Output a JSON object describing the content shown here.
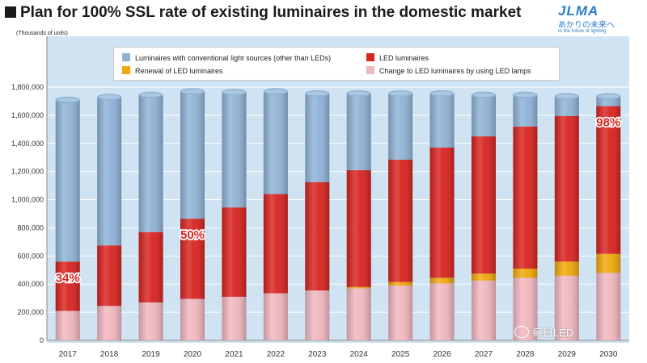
{
  "header": {
    "title": "Plan for 100% SSL rate of existing luminaires in the domestic market",
    "units": "(Thousands of units)"
  },
  "logo": {
    "mark": "JLMA",
    "japanese": "あかりの未来へ",
    "tagline": "to the future of lighting"
  },
  "watermark": {
    "text": "每日LED"
  },
  "colors": {
    "conventional": "#8fb3d6",
    "led": "#d8231f",
    "renewal": "#f0a80a",
    "lamps": "#f0b7bf",
    "plotBg": "#cfe3f2"
  },
  "chart_data": {
    "type": "bar",
    "stacked": true,
    "title": "Plan for 100% SSL rate of existing luminaires in the domestic market",
    "ylabel": "(Thousands of units)",
    "ylim": [
      0,
      1800000
    ],
    "yticks": [
      "0",
      "200,000",
      "400,000",
      "600,000",
      "800,000",
      "1,000,000",
      "1,200,000",
      "1,400,000",
      "1,600,000",
      "1,800,000"
    ],
    "categories": [
      "2017",
      "2018",
      "2019",
      "2020",
      "2021",
      "2022",
      "2023",
      "2024",
      "2025",
      "2026",
      "2027",
      "2028",
      "2029",
      "2030"
    ],
    "series": [
      {
        "name": "Change to LED luminaires by using LED lamps",
        "key": "lamps",
        "values": [
          210000,
          245000,
          270000,
          295000,
          310000,
          335000,
          355000,
          370000,
          390000,
          405000,
          425000,
          445000,
          460000,
          480000
        ]
      },
      {
        "name": "Renewal of LED luminaires",
        "key": "renewal",
        "values": [
          0,
          0,
          0,
          0,
          0,
          0,
          0,
          10000,
          25000,
          40000,
          50000,
          65000,
          100000,
          135000
        ]
      },
      {
        "name": "LED luminaires",
        "key": "led",
        "values": [
          350000,
          430000,
          500000,
          570000,
          635000,
          705000,
          770000,
          830000,
          870000,
          925000,
          975000,
          1010000,
          1035000,
          1050000
        ]
      },
      {
        "name": "Luminaires with conventional light sources (other than LEDs)",
        "key": "conventional",
        "values": [
          1150000,
          1055000,
          975000,
          905000,
          820000,
          730000,
          630000,
          545000,
          470000,
          385000,
          295000,
          225000,
          140000,
          70000
        ]
      }
    ],
    "legend": [
      {
        "label": "Luminaires with conventional light sources (other than LEDs)",
        "key": "conventional"
      },
      {
        "label": "LED luminaires",
        "key": "led"
      },
      {
        "label": "Renewal of LED luminaires",
        "key": "renewal"
      },
      {
        "label": "Change to LED luminaires by using LED lamps",
        "key": "lamps"
      }
    ],
    "legend_position": "top",
    "annotations": [
      {
        "text": "34%",
        "category": "2017"
      },
      {
        "text": "50%",
        "category": "2020"
      },
      {
        "text": "98%",
        "category": "2030"
      }
    ]
  }
}
